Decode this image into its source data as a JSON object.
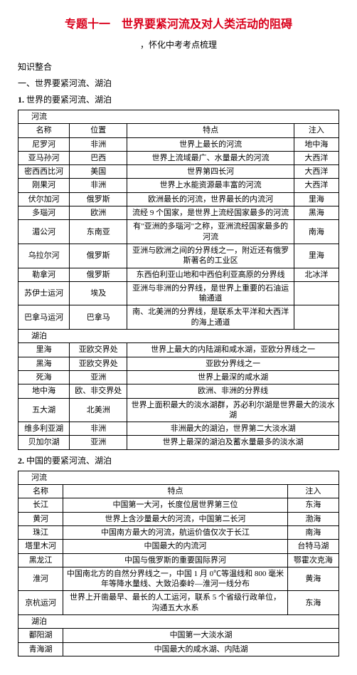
{
  "title": "专题十一　世界要紧河流及对人类活动的阻碍",
  "subtitle": "，怀化中考考点梳理",
  "heading_knowledge": "知识整合",
  "heading_section1": "一、世界要紧河流、湖泊",
  "heading_list1": "世界的要紧河流、湖泊",
  "list1_prefix": "1.",
  "table1": {
    "header_river": "河流",
    "cols": [
      "名称",
      "位置",
      "特点",
      "注入"
    ],
    "rivers": [
      {
        "name": "尼罗河",
        "loc": "非洲",
        "feat": "世界上最长的河流",
        "into": "地中海"
      },
      {
        "name": "亚马孙河",
        "loc": "巴西",
        "feat": "世界上流域最广、水量最大的河流",
        "into": "大西洋"
      },
      {
        "name": "密西西比河",
        "loc": "美国",
        "feat": "世界第四长河",
        "into": "大西洋"
      },
      {
        "name": "刚果河",
        "loc": "非洲",
        "feat": "世界上水能资源最丰富的河流",
        "into": "大西洋"
      },
      {
        "name": "伏尔加河",
        "loc": "俄罗斯",
        "feat": "欧洲最长的河流，世界最长的内流河",
        "into": "里海"
      },
      {
        "name": "多瑙河",
        "loc": "欧洲",
        "feat": "流经 9 个国家，是世界上流经国家最多的河流",
        "into": "黑海"
      },
      {
        "name": "湄公河",
        "loc": "东南亚",
        "feat": "有\"亚洲的多瑙河\"之称，亚洲流经国家最多的河流",
        "into": "南海"
      },
      {
        "name": "乌拉尔河",
        "loc": "俄罗斯",
        "feat": "亚洲与欧洲之间的分界线之一，附近还有俄罗斯著名的工业区",
        "into": "里海"
      },
      {
        "name": "勒拿河",
        "loc": "俄罗斯",
        "feat": "东西伯利亚山地和中西伯利亚高原的分界线",
        "into": "北冰洋"
      },
      {
        "name": "苏伊士运河",
        "loc": "埃及",
        "feat": "亚洲与非洲的分界线，是世界上重要的石油运输通道",
        "into": ""
      },
      {
        "name": "巴拿马运河",
        "loc": "巴拿马",
        "feat": "南、北美洲的分界线，是联系太平洋和大西洋的海上通道",
        "into": ""
      }
    ],
    "header_lake": "湖泊",
    "lakes": [
      {
        "name": "里海",
        "loc": "亚欧交界处",
        "feat": "世界上最大的内陆湖和咸水湖，亚欧分界线之一",
        "into": ""
      },
      {
        "name": "黑海",
        "loc": "亚欧交界处",
        "feat": "亚欧分界线之一",
        "into": ""
      },
      {
        "name": "死海",
        "loc": "亚洲",
        "feat": "世界上最深的咸水湖",
        "into": ""
      },
      {
        "name": "地中海",
        "loc": "欧、非交界处",
        "feat": "欧洲、非洲的分界线",
        "into": ""
      },
      {
        "name": "五大湖",
        "loc": "北美洲",
        "feat": "世界上面积最大的淡水湖群，苏必利尔湖是世界最大的淡水湖",
        "into": ""
      },
      {
        "name": "维多利亚湖",
        "loc": "非洲",
        "feat": "非洲最大的湖泊，世界第二大淡水湖",
        "into": ""
      },
      {
        "name": "贝加尔湖",
        "loc": "亚洲",
        "feat": "世界上最深的湖泊及蓄水量最多的淡水湖",
        "into": ""
      }
    ]
  },
  "heading_list2": "中国的要紧河流、湖泊",
  "list2_prefix": "2.",
  "table2": {
    "header_river": "河流",
    "cols": [
      "名称",
      "特点",
      "注入"
    ],
    "rivers": [
      {
        "name": "长江",
        "feat": "中国第一大河，长度位居世界第三位",
        "into": "东海"
      },
      {
        "name": "黄河",
        "feat": "世界上含沙量最大的河流，中国第二长河",
        "into": "渤海"
      },
      {
        "name": "珠江",
        "feat": "中国南方最大的河流，航运价值仅次于长江",
        "into": "南海"
      },
      {
        "name": "塔里木河",
        "feat": "中国最大的内流河",
        "into": "台特马湖"
      },
      {
        "name": "黑龙江",
        "feat": "中国与俄罗斯的重要国际界河",
        "into": "鄂霍次克海"
      },
      {
        "name": "淮河",
        "feat": "中国南北方的自然分界线之一，中国 1 月 0℃等温线和 800 毫米年等降水量线、大致沿秦岭—淮河一线分布",
        "into": "黄海"
      },
      {
        "name": "京杭运河",
        "feat": "世界上开凿最早、最长的人工运河，联系 5 个省级行政单位，沟通五大水系",
        "into": "东海"
      }
    ],
    "header_lake": "湖泊",
    "lakes": [
      {
        "name": "鄱阳湖",
        "feat": "中国第一大淡水湖",
        "into": ""
      },
      {
        "name": "青海湖",
        "feat": "中国最大的咸水湖、内陆湖",
        "into": ""
      }
    ]
  }
}
